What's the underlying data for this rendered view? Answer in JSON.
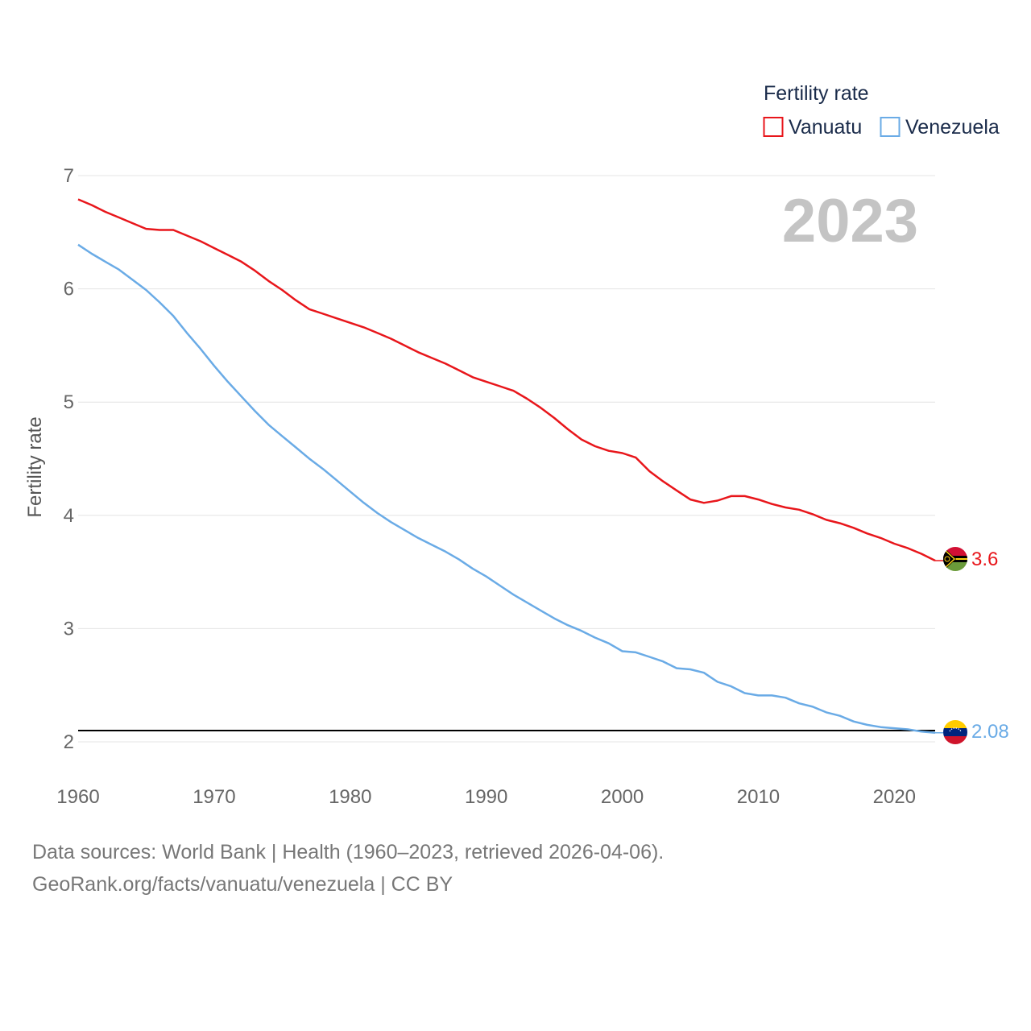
{
  "chart_data": {
    "type": "line",
    "legend_title": "Fertility rate",
    "ylabel": "Fertility rate",
    "year_label": "2023",
    "xlim": [
      1960,
      2023
    ],
    "ylim": [
      2,
      7
    ],
    "x_ticks": [
      "1960",
      "1970",
      "1980",
      "1990",
      "2000",
      "2010",
      "2020"
    ],
    "y_ticks": [
      "2",
      "3",
      "4",
      "5",
      "6",
      "7"
    ],
    "reference_line": 2.1,
    "series": [
      {
        "name": "Vanuatu",
        "color": "#e8161b",
        "end_value": "3.6",
        "flag": "vanuatu-flag",
        "points": [
          [
            1960,
            6.79
          ],
          [
            1961,
            6.74
          ],
          [
            1962,
            6.68
          ],
          [
            1963,
            6.63
          ],
          [
            1964,
            6.58
          ],
          [
            1965,
            6.53
          ],
          [
            1966,
            6.52
          ],
          [
            1967,
            6.52
          ],
          [
            1968,
            6.47
          ],
          [
            1969,
            6.42
          ],
          [
            1970,
            6.36
          ],
          [
            1971,
            6.3
          ],
          [
            1972,
            6.24
          ],
          [
            1973,
            6.16
          ],
          [
            1974,
            6.07
          ],
          [
            1975,
            5.99
          ],
          [
            1976,
            5.9
          ],
          [
            1977,
            5.82
          ],
          [
            1978,
            5.78
          ],
          [
            1979,
            5.74
          ],
          [
            1980,
            5.7
          ],
          [
            1981,
            5.66
          ],
          [
            1982,
            5.61
          ],
          [
            1983,
            5.56
          ],
          [
            1984,
            5.5
          ],
          [
            1985,
            5.44
          ],
          [
            1986,
            5.39
          ],
          [
            1987,
            5.34
          ],
          [
            1988,
            5.28
          ],
          [
            1989,
            5.22
          ],
          [
            1990,
            5.18
          ],
          [
            1991,
            5.14
          ],
          [
            1992,
            5.1
          ],
          [
            1993,
            5.03
          ],
          [
            1994,
            4.95
          ],
          [
            1995,
            4.86
          ],
          [
            1996,
            4.76
          ],
          [
            1997,
            4.67
          ],
          [
            1998,
            4.61
          ],
          [
            1999,
            4.57
          ],
          [
            2000,
            4.55
          ],
          [
            2001,
            4.51
          ],
          [
            2002,
            4.39
          ],
          [
            2003,
            4.3
          ],
          [
            2004,
            4.22
          ],
          [
            2005,
            4.14
          ],
          [
            2006,
            4.11
          ],
          [
            2007,
            4.13
          ],
          [
            2008,
            4.17
          ],
          [
            2009,
            4.17
          ],
          [
            2010,
            4.14
          ],
          [
            2011,
            4.1
          ],
          [
            2012,
            4.07
          ],
          [
            2013,
            4.05
          ],
          [
            2014,
            4.01
          ],
          [
            2015,
            3.96
          ],
          [
            2016,
            3.93
          ],
          [
            2017,
            3.89
          ],
          [
            2018,
            3.84
          ],
          [
            2019,
            3.8
          ],
          [
            2020,
            3.75
          ],
          [
            2021,
            3.71
          ],
          [
            2022,
            3.66
          ],
          [
            2023,
            3.6
          ]
        ]
      },
      {
        "name": "Venezuela",
        "color": "#6aabe6",
        "end_value": "2.08",
        "flag": "venezuela-flag",
        "points": [
          [
            1960,
            6.39
          ],
          [
            1961,
            6.31
          ],
          [
            1962,
            6.24
          ],
          [
            1963,
            6.17
          ],
          [
            1964,
            6.08
          ],
          [
            1965,
            5.99
          ],
          [
            1966,
            5.88
          ],
          [
            1967,
            5.76
          ],
          [
            1968,
            5.61
          ],
          [
            1969,
            5.47
          ],
          [
            1970,
            5.32
          ],
          [
            1971,
            5.18
          ],
          [
            1972,
            5.05
          ],
          [
            1973,
            4.92
          ],
          [
            1974,
            4.8
          ],
          [
            1975,
            4.7
          ],
          [
            1976,
            4.6
          ],
          [
            1977,
            4.5
          ],
          [
            1978,
            4.41
          ],
          [
            1979,
            4.31
          ],
          [
            1980,
            4.21
          ],
          [
            1981,
            4.11
          ],
          [
            1982,
            4.02
          ],
          [
            1983,
            3.94
          ],
          [
            1984,
            3.87
          ],
          [
            1985,
            3.8
          ],
          [
            1986,
            3.74
          ],
          [
            1987,
            3.68
          ],
          [
            1988,
            3.61
          ],
          [
            1989,
            3.53
          ],
          [
            1990,
            3.46
          ],
          [
            1991,
            3.38
          ],
          [
            1992,
            3.3
          ],
          [
            1993,
            3.23
          ],
          [
            1994,
            3.16
          ],
          [
            1995,
            3.09
          ],
          [
            1996,
            3.03
          ],
          [
            1997,
            2.98
          ],
          [
            1998,
            2.92
          ],
          [
            1999,
            2.87
          ],
          [
            2000,
            2.8
          ],
          [
            2001,
            2.79
          ],
          [
            2002,
            2.75
          ],
          [
            2003,
            2.71
          ],
          [
            2004,
            2.65
          ],
          [
            2005,
            2.64
          ],
          [
            2006,
            2.61
          ],
          [
            2007,
            2.53
          ],
          [
            2008,
            2.49
          ],
          [
            2009,
            2.43
          ],
          [
            2010,
            2.41
          ],
          [
            2011,
            2.41
          ],
          [
            2012,
            2.39
          ],
          [
            2013,
            2.34
          ],
          [
            2014,
            2.31
          ],
          [
            2015,
            2.26
          ],
          [
            2016,
            2.23
          ],
          [
            2017,
            2.18
          ],
          [
            2018,
            2.15
          ],
          [
            2019,
            2.13
          ],
          [
            2020,
            2.12
          ],
          [
            2021,
            2.11
          ],
          [
            2022,
            2.09
          ],
          [
            2023,
            2.08
          ]
        ]
      }
    ]
  },
  "footer": {
    "line1": "Data sources: World Bank | Health (1960–2023, retrieved 2026-04-06).",
    "line2": "GeoRank.org/facts/vanuatu/venezuela | CC BY"
  }
}
